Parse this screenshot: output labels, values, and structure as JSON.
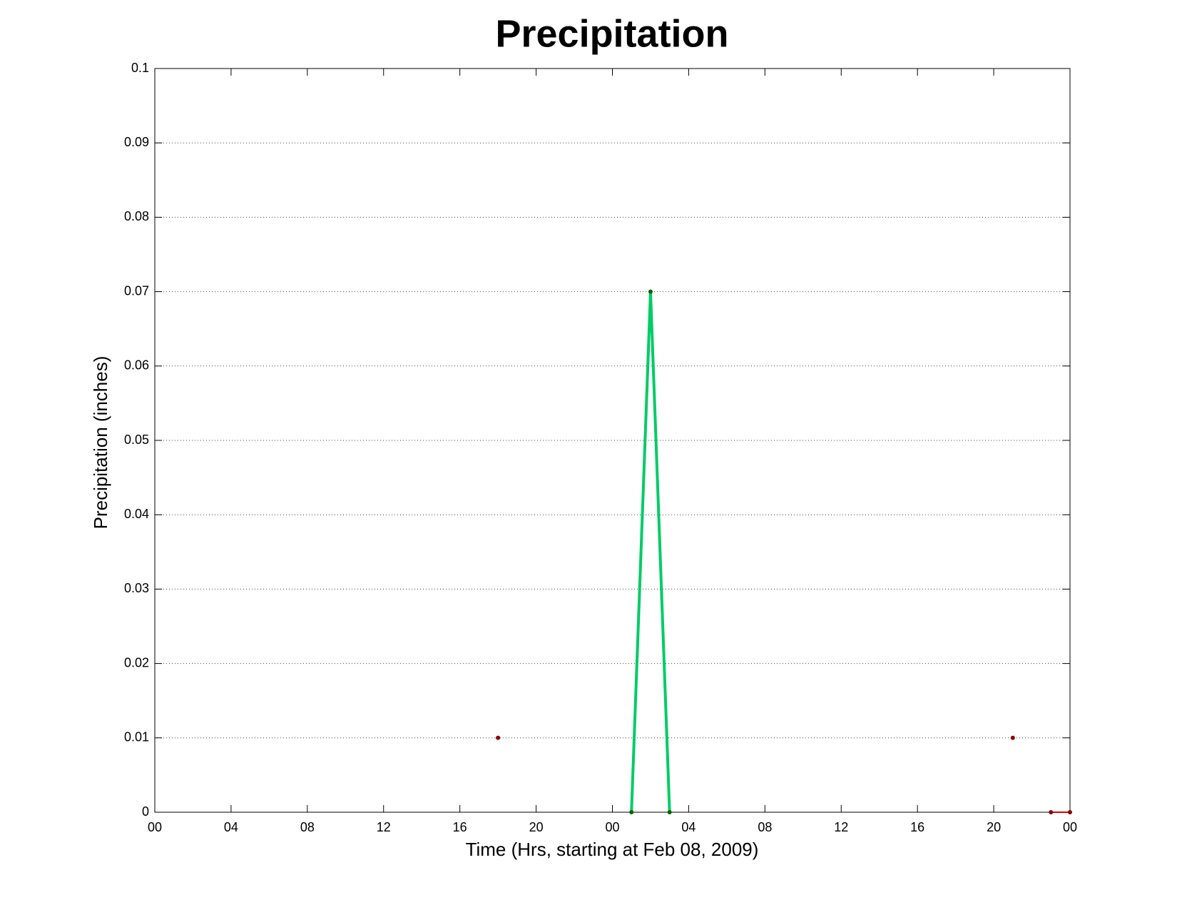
{
  "chart_data": {
    "type": "line",
    "title": "Precipitation",
    "xlabel": "Time (Hrs, starting at Feb 08, 2009)",
    "ylabel": "Precipitation (inches)",
    "x": [
      0,
      1,
      2,
      3,
      4,
      5,
      6,
      7,
      8,
      9,
      10,
      11,
      12,
      13,
      14,
      15,
      16,
      17,
      18,
      19,
      20,
      21,
      22,
      23,
      24,
      25,
      26,
      27,
      28,
      29,
      30,
      31,
      32,
      33,
      34,
      35,
      36,
      37,
      38,
      39,
      40,
      41,
      42,
      43,
      44,
      45,
      46,
      47,
      48
    ],
    "series": [
      {
        "color": "#dd0000",
        "marker_color": "#8b0000",
        "line_width": 2,
        "values": [
          null,
          null,
          null,
          null,
          null,
          null,
          null,
          null,
          null,
          null,
          null,
          null,
          null,
          null,
          null,
          null,
          null,
          null,
          0.01,
          null,
          null,
          null,
          null,
          null,
          null,
          null,
          null,
          null,
          null,
          null,
          null,
          null,
          null,
          null,
          null,
          null,
          null,
          null,
          null,
          null,
          null,
          null,
          null,
          null,
          null,
          0.01,
          null,
          0,
          0
        ]
      },
      {
        "color": "#00cc66",
        "marker_color": "#006400",
        "line_width": 4,
        "values": [
          null,
          null,
          null,
          null,
          null,
          null,
          null,
          null,
          null,
          null,
          null,
          null,
          null,
          null,
          null,
          null,
          null,
          null,
          null,
          null,
          null,
          null,
          null,
          null,
          null,
          0,
          0.07,
          0,
          null,
          null,
          null,
          null,
          null,
          null,
          null,
          null,
          null,
          null,
          null,
          null,
          null,
          null,
          null,
          null,
          null,
          null,
          null,
          null,
          null
        ]
      }
    ],
    "xlim": [
      0,
      48
    ],
    "xticks": [
      {
        "value": 0,
        "label": "00"
      },
      {
        "value": 4,
        "label": "04"
      },
      {
        "value": 8,
        "label": "08"
      },
      12,
      16,
      20,
      {
        "value": 24,
        "label": "00"
      },
      {
        "value": 28,
        "label": "04"
      },
      {
        "value": 32,
        "label": "08"
      },
      {
        "value": 36,
        "label": "12"
      },
      {
        "value": 40,
        "label": "16"
      },
      {
        "value": 44,
        "label": "20"
      },
      {
        "value": 48,
        "label": "00"
      }
    ],
    "ylim": [
      0,
      0.1
    ],
    "yticks": [
      0,
      0.01,
      0.02,
      0.03,
      0.04,
      0.05,
      0.06,
      0.07,
      0.08,
      0.09,
      0.1
    ],
    "grid": true
  }
}
